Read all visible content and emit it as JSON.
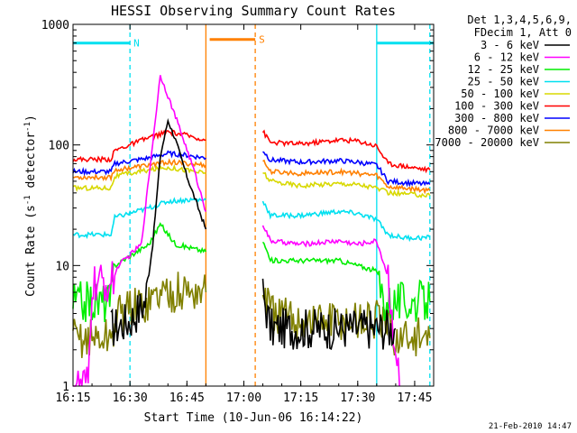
{
  "chart_data": {
    "type": "line",
    "title": "HESSI Observing Summary Count Rates",
    "xlabel": "Start Time (10-Jun-06 16:14:22)",
    "ylabel": "Count Rate (s",
    "ylabel_sup1": "-1",
    "ylabel_mid": " detector",
    "ylabel_sup2": "-1",
    "ylabel_end": ")",
    "yscale": "log",
    "ylim": [
      1,
      1000
    ],
    "xlim_min": [
      975,
      1070
    ],
    "x_ticks": [
      {
        "v": 975,
        "label": "16:15"
      },
      {
        "v": 990,
        "label": "16:30"
      },
      {
        "v": 1005,
        "label": "16:45"
      },
      {
        "v": 1020,
        "label": "17:00"
      },
      {
        "v": 1035,
        "label": "17:15"
      },
      {
        "v": 1050,
        "label": "17:30"
      },
      {
        "v": 1065,
        "label": "17:45"
      }
    ],
    "y_ticks": [
      {
        "v": 1,
        "label": "1"
      },
      {
        "v": 10,
        "label": "10"
      },
      {
        "v": 100,
        "label": "100"
      },
      {
        "v": 1000,
        "label": "1000"
      }
    ],
    "legend_header": [
      "Det 1,3,4,5,6,9,",
      "FDecim 1, Att 0"
    ],
    "footer_date": "21-Feb-2010 14:47",
    "flags": [
      {
        "label": "N",
        "start": 975,
        "end": 990,
        "color": "#00e0f0",
        "level": 700
      },
      {
        "label": "S",
        "start": 1011,
        "end": 1023,
        "color": "#ff8000",
        "level": 750
      },
      {
        "label": "",
        "start": 1055,
        "end": 1070,
        "color": "#00e0f0",
        "level": 700
      }
    ],
    "vlines": [
      {
        "x": 990,
        "color": "#00e0f0",
        "style": "dashed"
      },
      {
        "x": 1010,
        "color": "#ff8000",
        "style": "solid"
      },
      {
        "x": 1023,
        "color": "#ff8000",
        "style": "dashed"
      },
      {
        "x": 1055,
        "color": "#00e0f0",
        "style": "solid"
      },
      {
        "x": 1069,
        "color": "#00e0f0",
        "style": "dashed"
      }
    ],
    "series": [
      {
        "name": "3 - 6 keV",
        "color": "#000000",
        "pts": [
          [
            985,
            3
          ],
          [
            990,
            3.5
          ],
          [
            994,
            5
          ],
          [
            996,
            15
          ],
          [
            998,
            80
          ],
          [
            1000,
            160
          ],
          [
            1002,
            110
          ],
          [
            1005,
            55
          ],
          [
            1008,
            30
          ],
          [
            1010,
            20
          ],
          null,
          [
            1025,
            6
          ],
          [
            1027,
            3
          ],
          [
            1035,
            3
          ],
          [
            1045,
            3
          ],
          [
            1050,
            3
          ],
          [
            1055,
            3
          ],
          [
            1060,
            3
          ]
        ]
      },
      {
        "name": "6 - 12 keV",
        "color": "#ff00ff",
        "pts": [
          [
            975,
            1
          ],
          [
            979,
            1
          ],
          [
            980,
            7
          ],
          [
            985,
            7
          ],
          [
            987,
            10
          ],
          [
            993,
            15
          ],
          [
            998,
            380
          ],
          [
            1003,
            140
          ],
          [
            1007,
            60
          ],
          [
            1010,
            28
          ],
          null,
          [
            1025,
            22
          ],
          [
            1027,
            16
          ],
          [
            1035,
            15
          ],
          [
            1045,
            16
          ],
          [
            1050,
            15
          ],
          [
            1055,
            16
          ],
          [
            1058,
            8
          ],
          [
            1060,
            2
          ],
          [
            1061,
            1
          ]
        ]
      },
      {
        "name": "12 - 25 keV",
        "color": "#00ee00",
        "pts": [
          [
            975,
            5
          ],
          [
            985,
            5
          ],
          [
            986,
            10
          ],
          [
            995,
            15
          ],
          [
            998,
            22
          ],
          [
            1002,
            15
          ],
          [
            1006,
            14
          ],
          [
            1010,
            13
          ],
          null,
          [
            1025,
            16
          ],
          [
            1027,
            11
          ],
          [
            1035,
            11
          ],
          [
            1045,
            11
          ],
          [
            1050,
            10
          ],
          [
            1055,
            9
          ],
          [
            1057,
            5
          ],
          [
            1062,
            5
          ],
          [
            1069,
            5
          ]
        ]
      },
      {
        "name": "25 - 50 keV",
        "color": "#00e0f0",
        "pts": [
          [
            975,
            18
          ],
          [
            985,
            18
          ],
          [
            986,
            25
          ],
          [
            995,
            30
          ],
          [
            1000,
            34
          ],
          [
            1005,
            35
          ],
          [
            1010,
            35
          ],
          null,
          [
            1025,
            35
          ],
          [
            1027,
            26
          ],
          [
            1035,
            26
          ],
          [
            1045,
            28
          ],
          [
            1050,
            27
          ],
          [
            1055,
            24
          ],
          [
            1058,
            18
          ],
          [
            1062,
            17
          ],
          [
            1069,
            17
          ]
        ]
      },
      {
        "name": "50 - 100 keV",
        "color": "#d8d800",
        "pts": [
          [
            975,
            44
          ],
          [
            985,
            44
          ],
          [
            986,
            55
          ],
          [
            995,
            62
          ],
          [
            1000,
            65
          ],
          [
            1005,
            62
          ],
          [
            1010,
            58
          ],
          null,
          [
            1025,
            60
          ],
          [
            1027,
            50
          ],
          [
            1035,
            46
          ],
          [
            1045,
            48
          ],
          [
            1050,
            47
          ],
          [
            1055,
            44
          ],
          [
            1058,
            40
          ],
          [
            1069,
            38
          ]
        ]
      },
      {
        "name": "100 - 300 keV",
        "color": "#ff0000",
        "pts": [
          [
            975,
            76
          ],
          [
            985,
            76
          ],
          [
            986,
            90
          ],
          [
            995,
            115
          ],
          [
            1000,
            128
          ],
          [
            1005,
            120
          ],
          [
            1010,
            110
          ],
          null,
          [
            1025,
            130
          ],
          [
            1027,
            105
          ],
          [
            1035,
            102
          ],
          [
            1045,
            110
          ],
          [
            1050,
            108
          ],
          [
            1055,
            98
          ],
          [
            1058,
            70
          ],
          [
            1069,
            62
          ]
        ]
      },
      {
        "name": "300 - 800 keV",
        "color": "#0000ff",
        "pts": [
          [
            975,
            60
          ],
          [
            985,
            60
          ],
          [
            986,
            70
          ],
          [
            995,
            78
          ],
          [
            1000,
            85
          ],
          [
            1005,
            82
          ],
          [
            1010,
            78
          ],
          null,
          [
            1025,
            90
          ],
          [
            1027,
            75
          ],
          [
            1035,
            72
          ],
          [
            1045,
            74
          ],
          [
            1050,
            72
          ],
          [
            1055,
            68
          ],
          [
            1058,
            50
          ],
          [
            1069,
            47
          ]
        ]
      },
      {
        "name": "800 - 7000 keV",
        "color": "#ff8000",
        "pts": [
          [
            975,
            54
          ],
          [
            985,
            54
          ],
          [
            986,
            62
          ],
          [
            995,
            68
          ],
          [
            1000,
            72
          ],
          [
            1005,
            70
          ],
          [
            1010,
            68
          ],
          null,
          [
            1025,
            75
          ],
          [
            1027,
            60
          ],
          [
            1035,
            58
          ],
          [
            1045,
            60
          ],
          [
            1050,
            58
          ],
          [
            1055,
            56
          ],
          [
            1058,
            45
          ],
          [
            1069,
            42
          ]
        ]
      },
      {
        "name": "7000 - 20000 keV",
        "color": "#808000",
        "pts": [
          [
            975,
            2.5
          ],
          [
            985,
            2.5
          ],
          [
            987,
            4
          ],
          [
            995,
            5
          ],
          [
            998,
            6
          ],
          [
            1005,
            6
          ],
          [
            1010,
            6
          ],
          null,
          [
            1025,
            7
          ],
          [
            1027,
            4
          ],
          [
            1035,
            3.5
          ],
          [
            1045,
            3.5
          ],
          [
            1050,
            3.5
          ],
          [
            1055,
            3.5
          ],
          [
            1058,
            3
          ],
          [
            1060,
            2.5
          ],
          [
            1069,
            2.5
          ]
        ]
      }
    ]
  }
}
